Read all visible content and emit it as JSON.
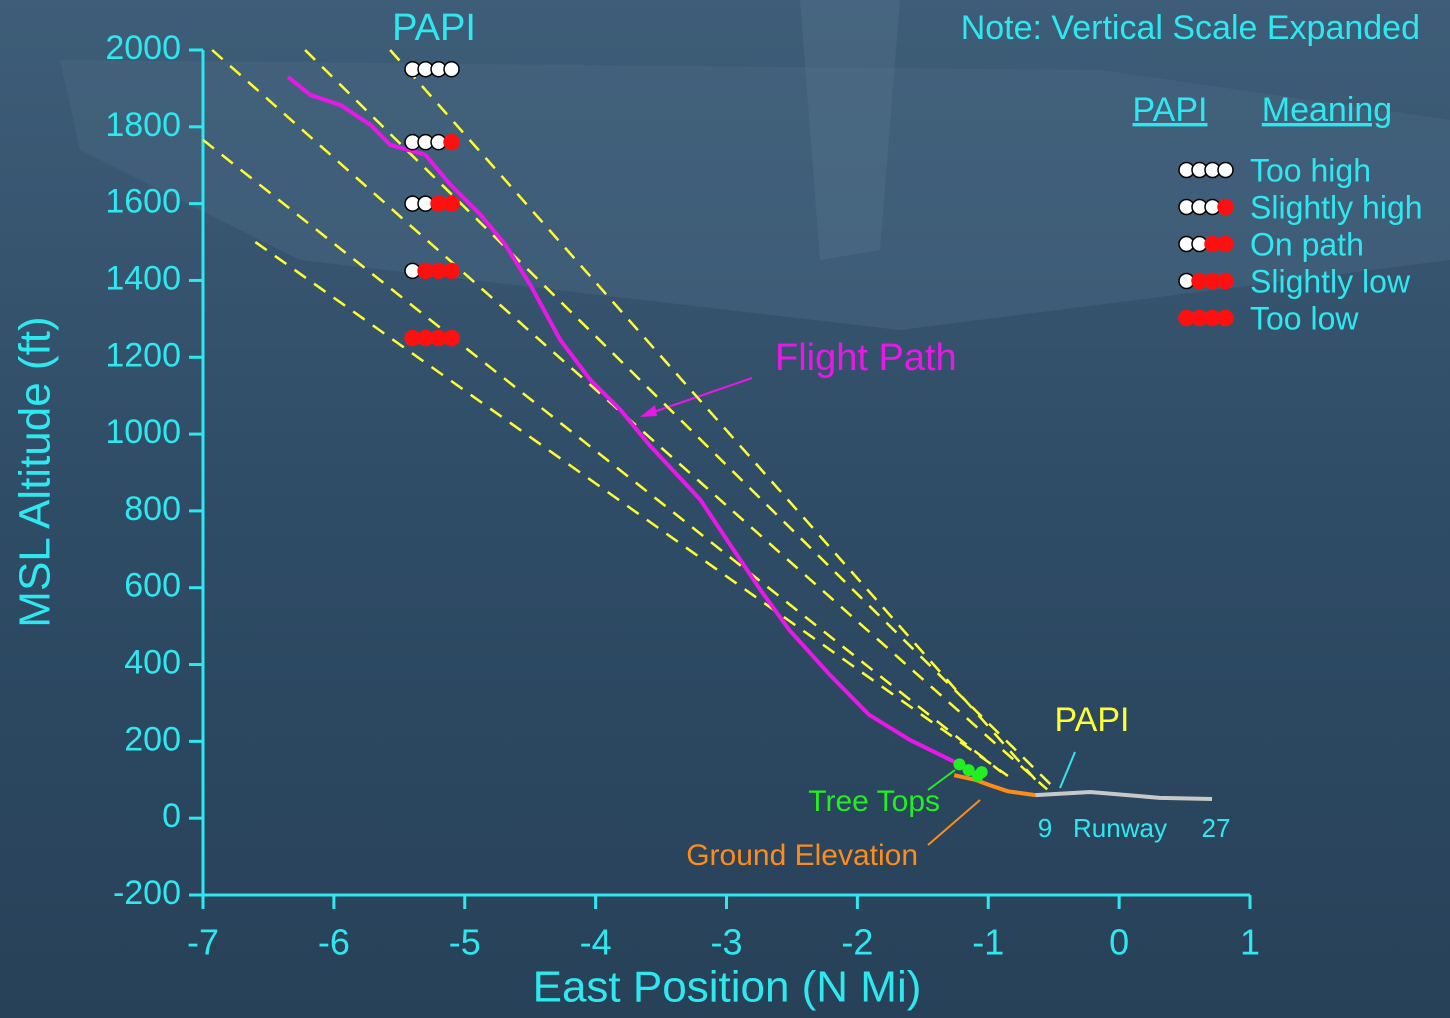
{
  "chart_data": {
    "type": "line",
    "title": "PAPI",
    "note": "Note: Vertical Scale Expanded",
    "x_label": "East Position (N Mi)",
    "y_label": "MSL Altitude (ft)",
    "xlim": [
      -7,
      1
    ],
    "ylim": [
      -200,
      2000
    ],
    "xticks": [
      -7,
      -6,
      -5,
      -4,
      -3,
      -2,
      -1,
      0,
      1
    ],
    "yticks": [
      -200,
      0,
      200,
      400,
      600,
      800,
      1000,
      1200,
      1400,
      1600,
      1800,
      2000
    ],
    "series": [
      {
        "name": "Flight Path",
        "color": "#e818e8",
        "x": [
          -6.35,
          -6.18,
          -5.95,
          -5.72,
          -5.57,
          -5.3,
          -5.11,
          -4.88,
          -4.69,
          -4.5,
          -4.27,
          -4.04,
          -3.81,
          -3.59,
          -3.2,
          -2.97,
          -2.74,
          -2.52,
          -2.21,
          -1.91,
          -1.6,
          -1.29,
          -1.14
        ],
        "values": [
          1930,
          1883,
          1857,
          1805,
          1753,
          1727,
          1649,
          1571,
          1493,
          1389,
          1245,
          1141,
          1063,
          972,
          829,
          711,
          594,
          490,
          373,
          269,
          204,
          152,
          126
        ]
      },
      {
        "name": "Ground Elevation",
        "color": "#ff8c1a",
        "x": [
          -1.26,
          -1.1,
          -0.99,
          -0.85,
          -0.64
        ],
        "values": [
          112,
          100,
          86,
          70,
          60
        ]
      },
      {
        "name": "Tree Tops",
        "color": "#22ee22",
        "x": [
          -1.22,
          -1.15,
          -1.08,
          -1.05
        ],
        "values": [
          140,
          125,
          110,
          120
        ]
      },
      {
        "name": "Runway",
        "color": "#c8c8c8",
        "x": [
          -0.64,
          -0.22,
          0.31,
          0.71
        ],
        "values": [
          60,
          68,
          53,
          50
        ]
      }
    ],
    "glide_lines": {
      "color": "#ffff33",
      "lines": [
        {
          "x": [
            -6.93,
            -0.55
          ],
          "values": [
            2000,
            75
          ]
        },
        {
          "x": [
            -6.22,
            -0.5
          ],
          "values": [
            2000,
            80
          ]
        },
        {
          "x": [
            -5.57,
            -0.6
          ],
          "values": [
            2000,
            85
          ]
        },
        {
          "x": [
            -7,
            -0.9
          ],
          "values": [
            1766,
            120
          ]
        },
        {
          "x": [
            -6.6,
            -0.85
          ],
          "values": [
            1500,
            110
          ]
        }
      ]
    },
    "papi_markers": [
      {
        "x": -5.25,
        "y": 1950,
        "red": 0
      },
      {
        "x": -5.25,
        "y": 1760,
        "red": 1
      },
      {
        "x": -5.25,
        "y": 1600,
        "red": 2
      },
      {
        "x": -5.25,
        "y": 1425,
        "red": 3
      },
      {
        "x": -5.25,
        "y": 1250,
        "red": 4
      }
    ],
    "legend": {
      "headers": [
        "PAPI",
        "Meaning"
      ],
      "entries": [
        {
          "label": "Too high",
          "red": 0
        },
        {
          "label": "Slightly high",
          "red": 1
        },
        {
          "label": "On path",
          "red": 2
        },
        {
          "label": "Slightly low",
          "red": 3
        },
        {
          "label": "Too low",
          "red": 4
        }
      ]
    },
    "annotations": {
      "papi": "PAPI",
      "runway": "Runway",
      "runway_west": "9",
      "runway_east": "27"
    }
  }
}
